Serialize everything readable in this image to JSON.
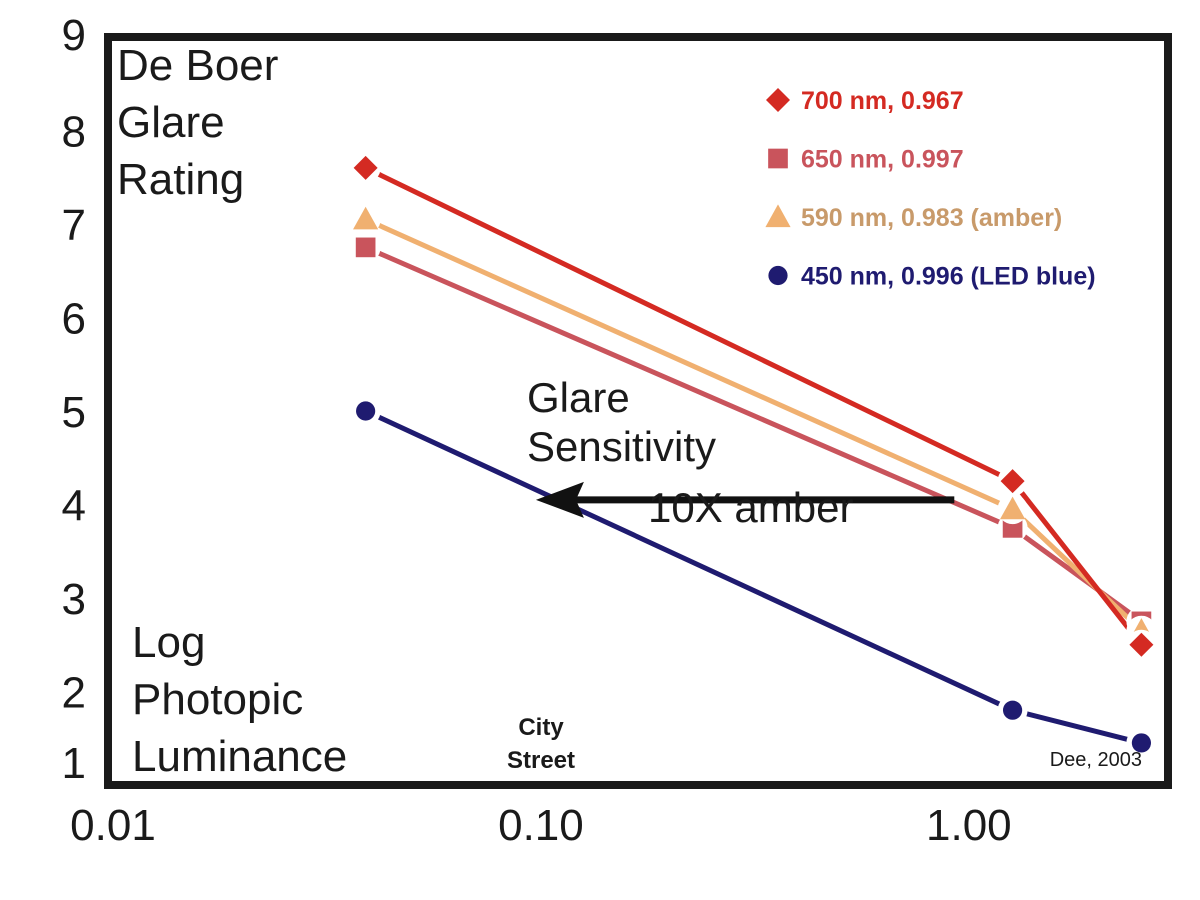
{
  "chart_data": {
    "type": "line",
    "title": "",
    "ylabel_lines": [
      "De Boer",
      "Glare",
      "Rating"
    ],
    "xlabel_lines": [
      "Log",
      "Photopic",
      "Luminance"
    ],
    "x_scale": "log",
    "xlim": [
      0.01,
      3.0
    ],
    "ylim": [
      1,
      9
    ],
    "x_ticks": [
      {
        "value": 0.01,
        "label": "0.01"
      },
      {
        "value": 0.1,
        "label": "0.10"
      },
      {
        "value": 1.0,
        "label": "1.00"
      }
    ],
    "y_ticks": [
      {
        "value": 1,
        "label": "1"
      },
      {
        "value": 2,
        "label": "2"
      },
      {
        "value": 3,
        "label": "3"
      },
      {
        "value": 4,
        "label": "4"
      },
      {
        "value": 5,
        "label": "5"
      },
      {
        "value": 6,
        "label": "6"
      },
      {
        "value": 7,
        "label": "7"
      },
      {
        "value": 8,
        "label": "8"
      },
      {
        "value": 9,
        "label": "9"
      }
    ],
    "x": [
      0.04,
      1.3,
      2.6
    ],
    "series": [
      {
        "name": "700 nm, 0.967",
        "color": "#d42a22",
        "marker": "diamond",
        "values": [
          7.6,
          4.25,
          2.5
        ]
      },
      {
        "name": "650 nm, 0.997",
        "color": "#c9545c",
        "marker": "square",
        "values": [
          6.75,
          3.75,
          2.75
        ]
      },
      {
        "name": "590 nm, 0.983 (amber)",
        "color": "#f0b070",
        "marker": "triangle",
        "values": [
          7.05,
          3.95,
          2.65
        ]
      },
      {
        "name": "450 nm, 0.996 (LED blue)",
        "color": "#1f1b70",
        "marker": "circle",
        "values": [
          5.0,
          1.8,
          1.45
        ]
      }
    ],
    "legend_label_colors": [
      "#d42a22",
      "#c9545c",
      "#c89a6a",
      "#1f1b70"
    ],
    "legend_position": "top-right",
    "annotations": {
      "glare_lines": [
        "Glare",
        "Sensitivity"
      ],
      "amber_note": "10X amber",
      "arrow_from_x": 0.95,
      "arrow_to_x": 0.1,
      "arrow_y": 4.05,
      "city_street": [
        "City",
        "Street"
      ],
      "credit": "Dee, 2003"
    },
    "grid": false
  }
}
